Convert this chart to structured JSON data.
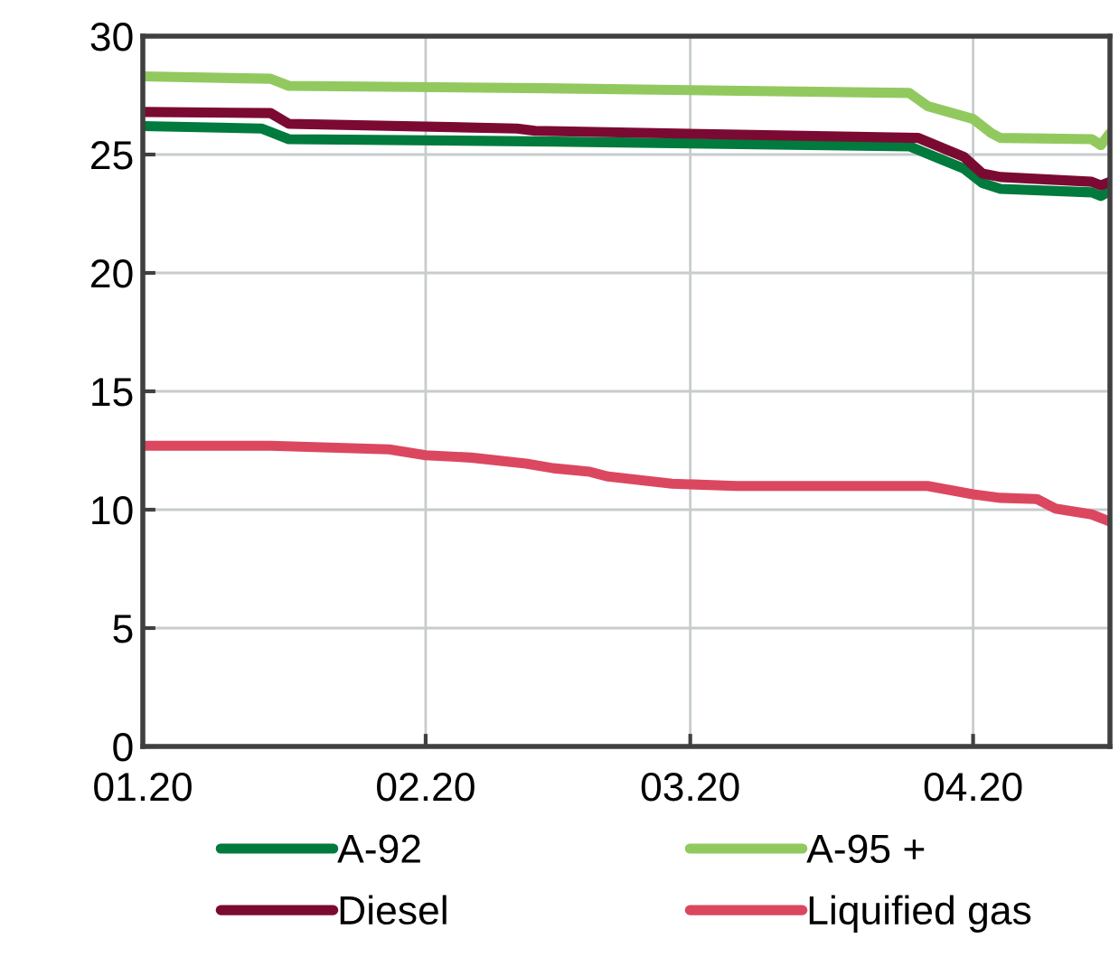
{
  "chart_data": {
    "type": "line",
    "xlim": [
      "2020-01-01",
      "2020-04-16"
    ],
    "xticks": [
      {
        "value": "2020-01-01",
        "label": "01.20"
      },
      {
        "value": "2020-02-01",
        "label": "02.20"
      },
      {
        "value": "2020-03-01",
        "label": "03.20"
      },
      {
        "value": "2020-04-01",
        "label": "04.20"
      }
    ],
    "ylim": [
      0,
      30
    ],
    "yticks": [
      0,
      5,
      10,
      15,
      20,
      25,
      30
    ],
    "grid": true,
    "legend": "bottom",
    "marker": "none",
    "line_style": "solid",
    "series": [
      {
        "name": "A-92",
        "color": "#007a3d",
        "x": [
          "2020-01-01",
          "2020-01-14",
          "2020-01-17",
          "2020-02-15",
          "2020-03-25",
          "2020-03-31",
          "2020-04-02",
          "2020-04-04",
          "2020-04-14",
          "2020-04-15",
          "2020-04-16"
        ],
        "values": [
          26.2,
          26.1,
          25.65,
          25.55,
          25.35,
          24.4,
          23.8,
          23.55,
          23.4,
          23.25,
          23.45
        ]
      },
      {
        "name": "A-95 +",
        "color": "#92c95f",
        "x": [
          "2020-01-01",
          "2020-01-15",
          "2020-01-17",
          "2020-02-14",
          "2020-03-25",
          "2020-03-27",
          "2020-04-01",
          "2020-04-03",
          "2020-04-04",
          "2020-04-14",
          "2020-04-15",
          "2020-04-16"
        ],
        "values": [
          28.3,
          28.2,
          27.9,
          27.8,
          27.6,
          27.05,
          26.5,
          25.9,
          25.7,
          25.65,
          25.4,
          25.9
        ]
      },
      {
        "name": "Diesel",
        "color": "#7b0a32",
        "x": [
          "2020-01-01",
          "2020-01-15",
          "2020-01-17",
          "2020-02-11",
          "2020-02-13",
          "2020-03-26",
          "2020-03-31",
          "2020-04-02",
          "2020-04-04",
          "2020-04-14",
          "2020-04-15",
          "2020-04-16"
        ],
        "values": [
          26.8,
          26.75,
          26.3,
          26.1,
          26.0,
          25.7,
          24.9,
          24.2,
          24.05,
          23.85,
          23.7,
          23.85
        ]
      },
      {
        "name": "Liquified gas",
        "color": "#dc4760",
        "x": [
          "2020-01-01",
          "2020-01-15",
          "2020-01-28",
          "2020-02-01",
          "2020-02-06",
          "2020-02-12",
          "2020-02-15",
          "2020-02-19",
          "2020-02-21",
          "2020-02-28",
          "2020-03-06",
          "2020-03-27",
          "2020-04-01",
          "2020-04-04",
          "2020-04-08",
          "2020-04-10",
          "2020-04-14",
          "2020-04-16"
        ],
        "values": [
          12.7,
          12.7,
          12.55,
          12.3,
          12.2,
          11.95,
          11.75,
          11.6,
          11.4,
          11.1,
          11.0,
          11.0,
          10.65,
          10.5,
          10.45,
          10.05,
          9.8,
          9.5
        ]
      }
    ]
  }
}
